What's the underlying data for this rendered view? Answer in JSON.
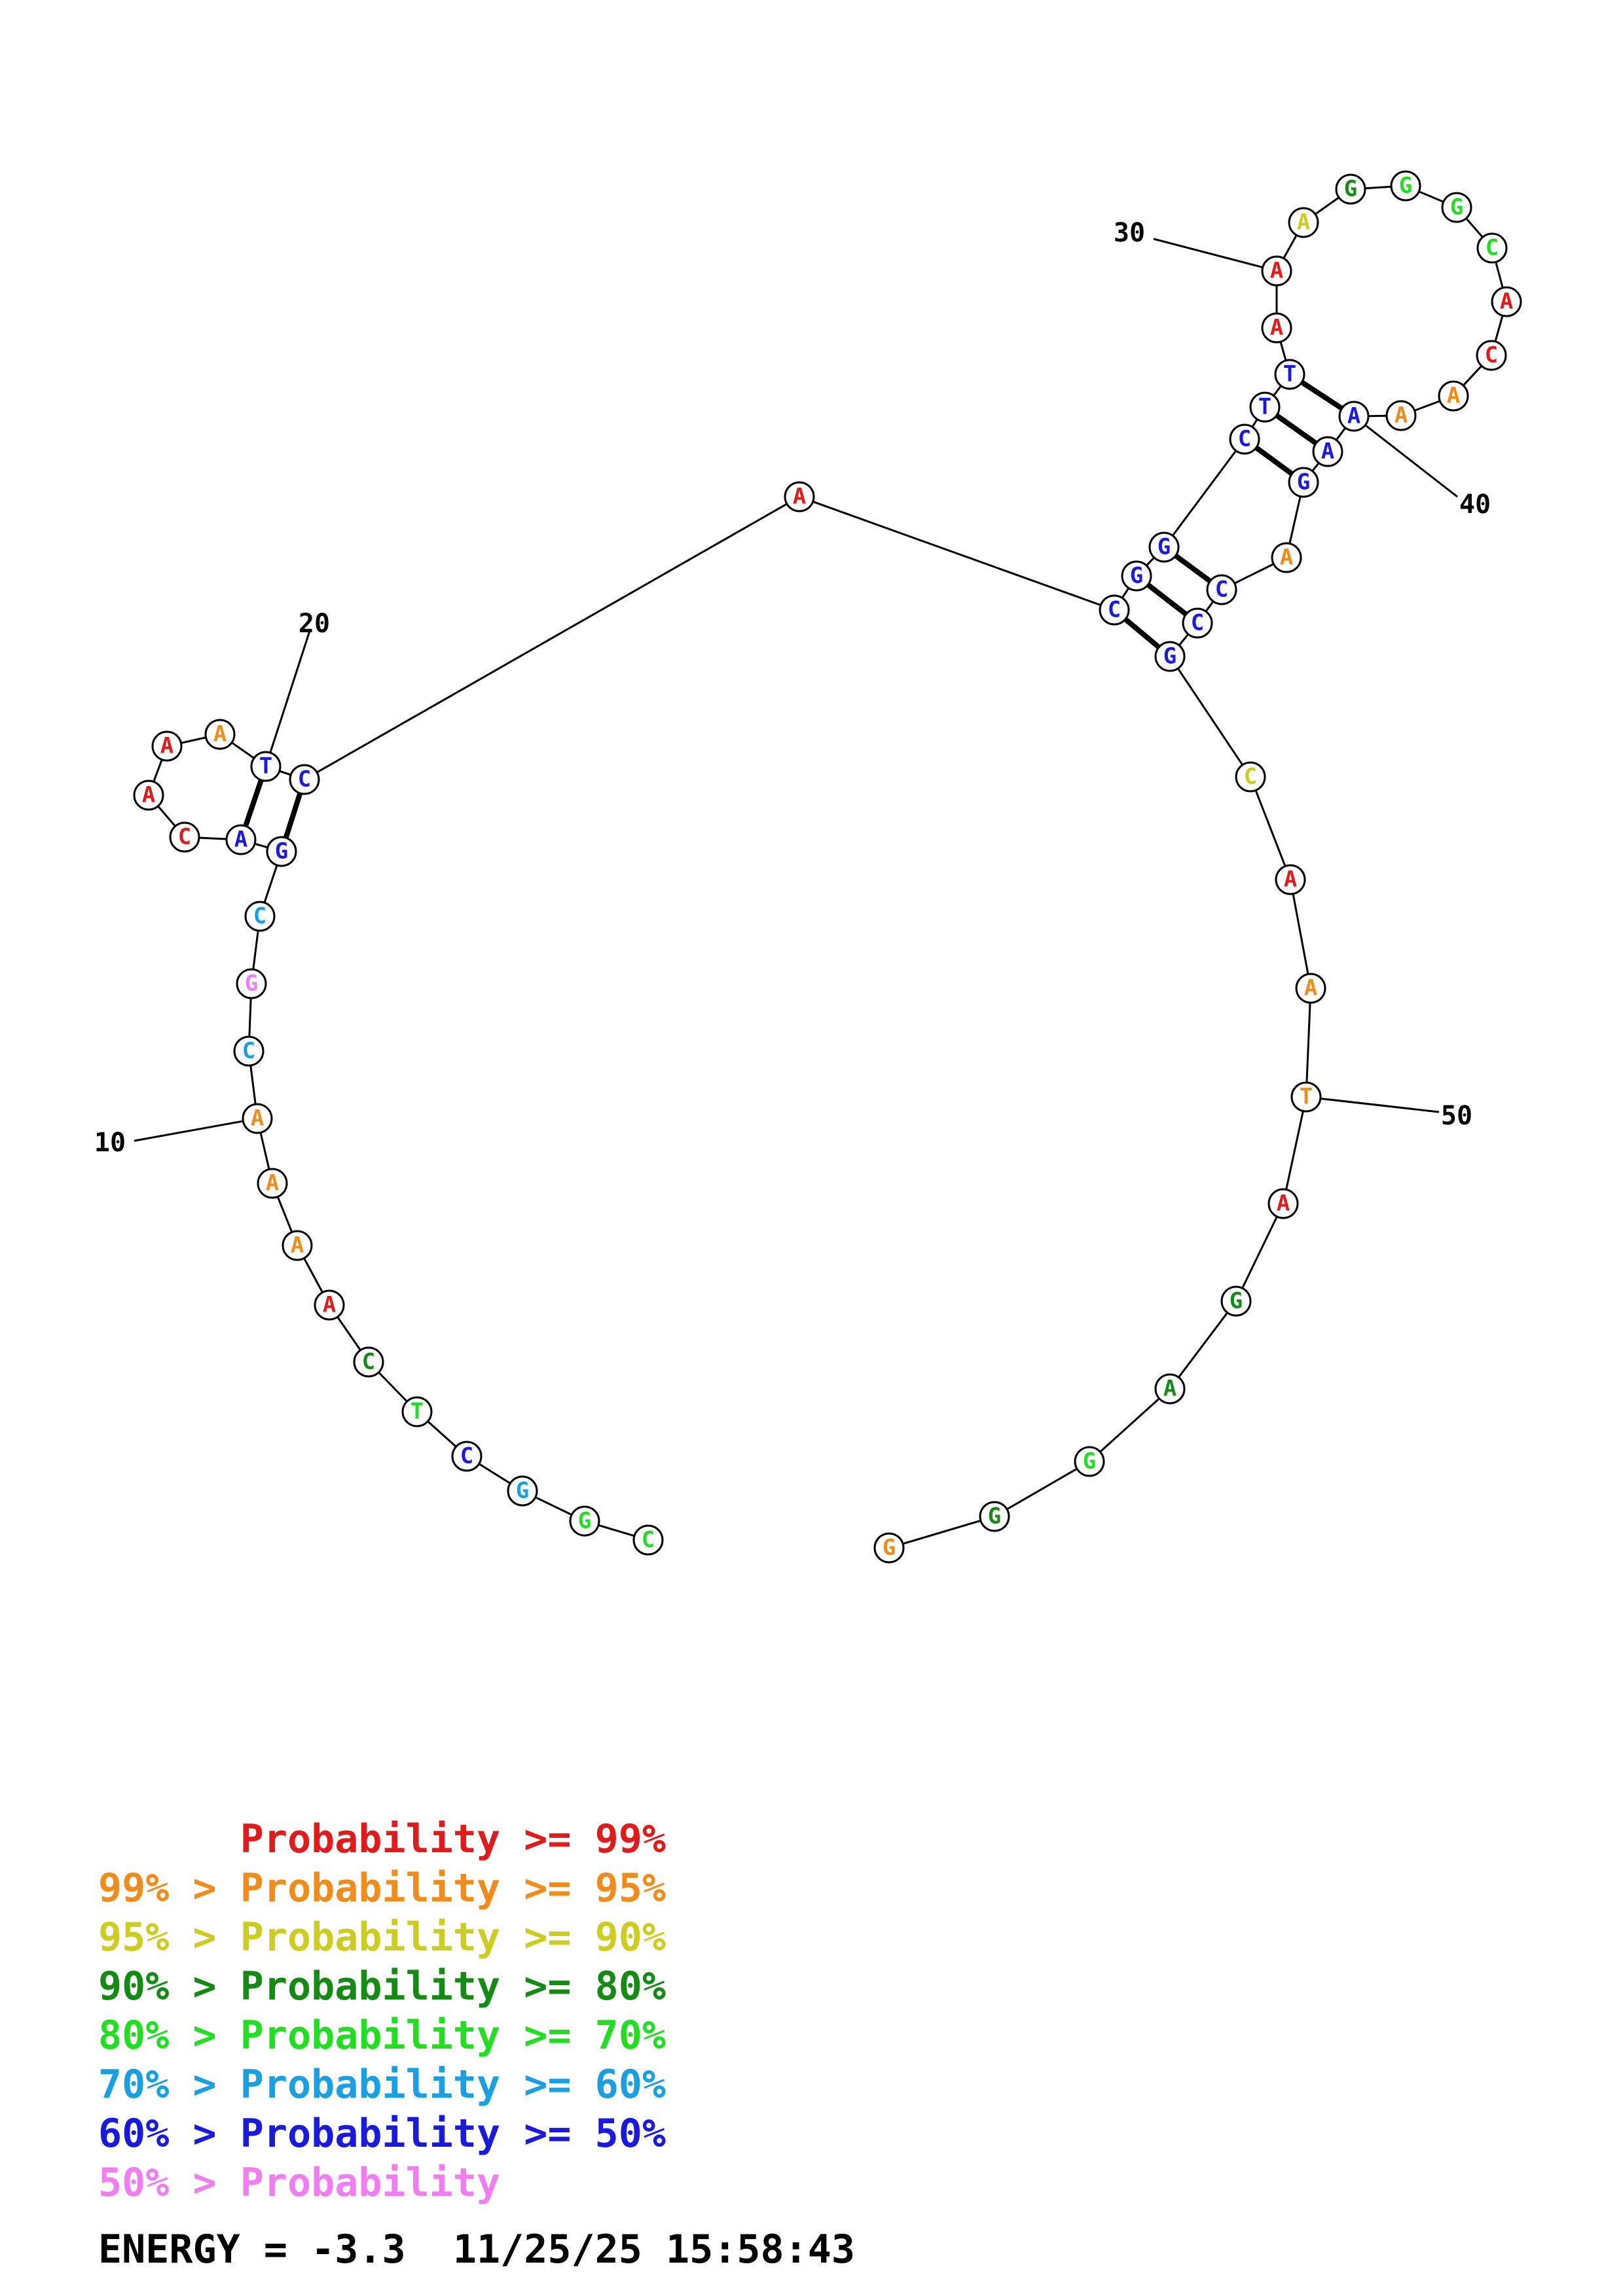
{
  "structure": {
    "bases": [
      {
        "n": 1,
        "b": "C",
        "c": "#22dd22"
      },
      {
        "n": 2,
        "b": "G",
        "c": "#22dd22"
      },
      {
        "n": 3,
        "b": "G",
        "c": "#1a9fe0"
      },
      {
        "n": 4,
        "b": "C",
        "c": "#1a1adc"
      },
      {
        "n": 5,
        "b": "T",
        "c": "#22dd22"
      },
      {
        "n": 6,
        "b": "C",
        "c": "#158a15"
      },
      {
        "n": 7,
        "b": "A",
        "c": "#e01b1b"
      },
      {
        "n": 8,
        "b": "A",
        "c": "#f08c1c"
      },
      {
        "n": 9,
        "b": "A",
        "c": "#f08c1c"
      },
      {
        "n": 10,
        "b": "A",
        "c": "#f08c1c"
      },
      {
        "n": 11,
        "b": "C",
        "c": "#1a9fe0"
      },
      {
        "n": 12,
        "b": "G",
        "c": "#f07ef0"
      },
      {
        "n": 13,
        "b": "C",
        "c": "#1a9fe0"
      },
      {
        "n": 14,
        "b": "G",
        "c": "#1a1adc"
      },
      {
        "n": 15,
        "b": "A",
        "c": "#1a1adc"
      },
      {
        "n": 16,
        "b": "C",
        "c": "#e01b1b"
      },
      {
        "n": 17,
        "b": "A",
        "c": "#e01b1b"
      },
      {
        "n": 18,
        "b": "A",
        "c": "#e01b1b"
      },
      {
        "n": 19,
        "b": "A",
        "c": "#f08c1c"
      },
      {
        "n": 20,
        "b": "T",
        "c": "#1a1adc"
      },
      {
        "n": 21,
        "b": "C",
        "c": "#1a1adc"
      },
      {
        "n": 22,
        "b": "A",
        "c": "#e01b1b"
      },
      {
        "n": 23,
        "b": "C",
        "c": "#1a1adc"
      },
      {
        "n": 24,
        "b": "G",
        "c": "#1a1adc"
      },
      {
        "n": 25,
        "b": "G",
        "c": "#1a1adc"
      },
      {
        "n": 26,
        "b": "C",
        "c": "#1a1adc"
      },
      {
        "n": 27,
        "b": "T",
        "c": "#1a1adc"
      },
      {
        "n": 28,
        "b": "T",
        "c": "#1a1adc"
      },
      {
        "n": 29,
        "b": "A",
        "c": "#e01b1b"
      },
      {
        "n": 30,
        "b": "A",
        "c": "#e01b1b"
      },
      {
        "n": 31,
        "b": "A",
        "c": "#cccc22"
      },
      {
        "n": 32,
        "b": "G",
        "c": "#158a15"
      },
      {
        "n": 33,
        "b": "G",
        "c": "#22dd22"
      },
      {
        "n": 34,
        "b": "G",
        "c": "#22dd22"
      },
      {
        "n": 35,
        "b": "C",
        "c": "#22dd22"
      },
      {
        "n": 36,
        "b": "A",
        "c": "#e01b1b"
      },
      {
        "n": 37,
        "b": "C",
        "c": "#e01b1b"
      },
      {
        "n": 38,
        "b": "A",
        "c": "#f08c1c"
      },
      {
        "n": 39,
        "b": "A",
        "c": "#f08c1c"
      },
      {
        "n": 40,
        "b": "A",
        "c": "#1a1adc"
      },
      {
        "n": 41,
        "b": "A",
        "c": "#1a1adc"
      },
      {
        "n": 42,
        "b": "G",
        "c": "#1a1adc"
      },
      {
        "n": 43,
        "b": "A",
        "c": "#f08c1c"
      },
      {
        "n": 44,
        "b": "C",
        "c": "#1a1adc"
      },
      {
        "n": 45,
        "b": "C",
        "c": "#1a1adc"
      },
      {
        "n": 46,
        "b": "G",
        "c": "#1a1adc"
      },
      {
        "n": 47,
        "b": "C",
        "c": "#cccc22"
      },
      {
        "n": 48,
        "b": "A",
        "c": "#e01b1b"
      },
      {
        "n": 49,
        "b": "A",
        "c": "#f08c1c"
      },
      {
        "n": 50,
        "b": "T",
        "c": "#f08c1c"
      },
      {
        "n": 51,
        "b": "A",
        "c": "#e01b1b"
      },
      {
        "n": 52,
        "b": "G",
        "c": "#158a15"
      },
      {
        "n": 53,
        "b": "A",
        "c": "#158a15"
      },
      {
        "n": 54,
        "b": "G",
        "c": "#22dd22"
      },
      {
        "n": 55,
        "b": "G",
        "c": "#158a15"
      },
      {
        "n": 56,
        "b": "G",
        "c": "#f08c1c"
      }
    ],
    "pairs": [
      [
        14,
        21
      ],
      [
        15,
        20
      ],
      [
        23,
        46
      ],
      [
        24,
        45
      ],
      [
        25,
        44
      ],
      [
        26,
        42
      ],
      [
        27,
        41
      ],
      [
        28,
        40
      ]
    ],
    "position_labels": [
      {
        "n": 10,
        "text": "10"
      },
      {
        "n": 20,
        "text": "20"
      },
      {
        "n": 30,
        "text": "30"
      },
      {
        "n": 40,
        "text": "40"
      },
      {
        "n": 50,
        "text": "50"
      }
    ]
  },
  "legend": [
    {
      "text": "      Probability >= 99%",
      "color": "#e01b1b"
    },
    {
      "text": "99% > Probability >= 95%",
      "color": "#f08c1c"
    },
    {
      "text": "95% > Probability >= 90%",
      "color": "#cccc22"
    },
    {
      "text": "90% > Probability >= 80%",
      "color": "#158a15"
    },
    {
      "text": "80% > Probability >= 70%",
      "color": "#22dd22"
    },
    {
      "text": "70% > Probability >= 60%",
      "color": "#1a9fe0"
    },
    {
      "text": "60% > Probability >= 50%",
      "color": "#1a1adc"
    },
    {
      "text": "50% > Probability",
      "color": "#f07ef0"
    }
  ],
  "energy_text": "ENERGY = -3.3  11/25/25 15:58:43"
}
